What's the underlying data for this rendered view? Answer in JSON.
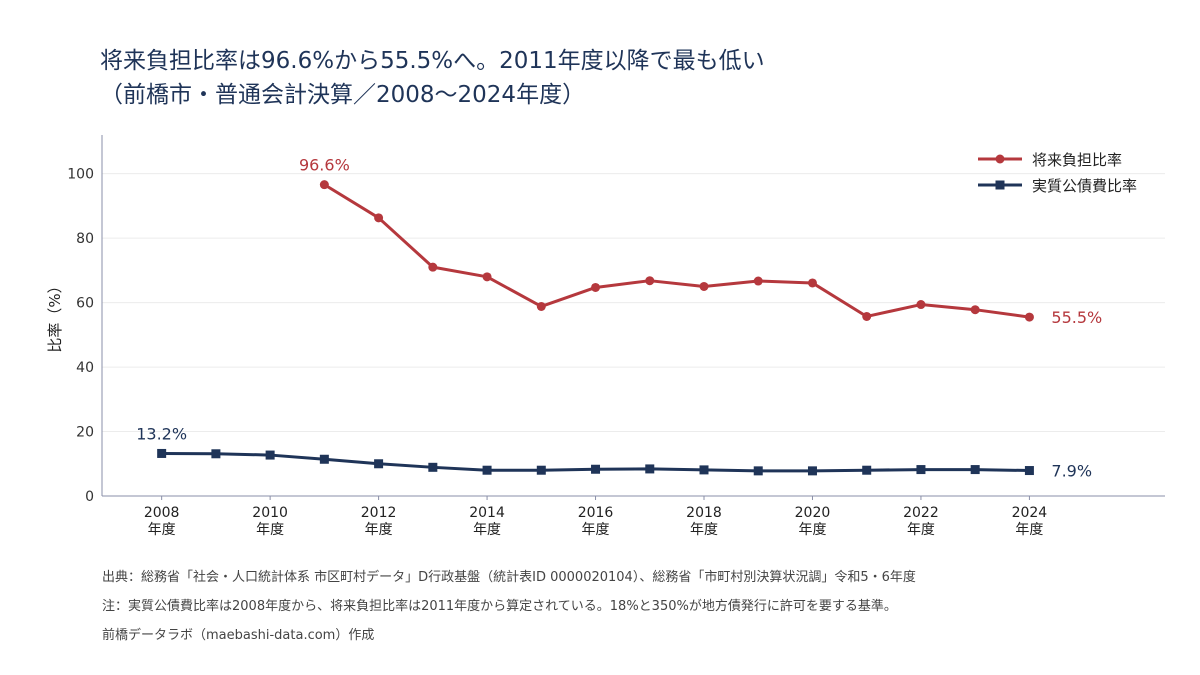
{
  "title": {
    "line1": "将来負担比率は96.6%から55.5%へ。2011年度以降で最も低い",
    "line2": "（前橋市・普通会計決算／2008〜2024年度）"
  },
  "chart_data": {
    "type": "line",
    "x": [
      2008,
      2009,
      2010,
      2011,
      2012,
      2013,
      2014,
      2015,
      2016,
      2017,
      2018,
      2019,
      2020,
      2021,
      2022,
      2023,
      2024
    ],
    "x_tick_labels": [
      {
        "year": 2008,
        "line1": "2008",
        "line2": "年度"
      },
      {
        "year": 2010,
        "line1": "2010",
        "line2": "年度"
      },
      {
        "year": 2012,
        "line1": "2012",
        "line2": "年度"
      },
      {
        "year": 2014,
        "line1": "2014",
        "line2": "年度"
      },
      {
        "year": 2016,
        "line1": "2016",
        "line2": "年度"
      },
      {
        "year": 2018,
        "line1": "2018",
        "line2": "年度"
      },
      {
        "year": 2020,
        "line1": "2020",
        "line2": "年度"
      },
      {
        "year": 2022,
        "line1": "2022",
        "line2": "年度"
      },
      {
        "year": 2024,
        "line1": "2024",
        "line2": "年度"
      }
    ],
    "y_ticks": [
      0,
      20,
      40,
      60,
      80,
      100
    ],
    "ylim": [
      0,
      112
    ],
    "xlim": [
      2006.9,
      2026.5
    ],
    "ylabel": "比率（%）",
    "xlabel": "",
    "grid": true,
    "legend_position": "top-right",
    "series": [
      {
        "name": "将来負担比率",
        "color": "#b5383d",
        "marker": "circle",
        "values": [
          null,
          null,
          null,
          96.6,
          86.3,
          71.0,
          68.0,
          58.8,
          64.7,
          66.8,
          65.0,
          66.7,
          66.1,
          55.7,
          59.4,
          57.8,
          55.5
        ],
        "start_label": "96.6%",
        "end_label": "55.5%"
      },
      {
        "name": "実質公債費比率",
        "color": "#1f3458",
        "marker": "square",
        "values": [
          13.2,
          13.1,
          12.7,
          11.4,
          10.0,
          8.9,
          8.0,
          8.0,
          8.3,
          8.4,
          8.1,
          7.8,
          7.8,
          8.0,
          8.2,
          8.2,
          7.9
        ],
        "start_label": "13.2%",
        "end_label": "7.9%"
      }
    ]
  },
  "footnotes": {
    "source": "出典：総務省「社会・人口統計体系 市区町村データ」D行政基盤（統計表ID 0000020104）、総務省「市町村別決算状況調」令和5・6年度",
    "note": "注：実質公債費比率は2008年度から、将来負担比率は2011年度から算定されている。18%と350%が地方債発行に許可を要する基準。",
    "credit": "前橋データラボ（maebashi-data.com）作成"
  }
}
